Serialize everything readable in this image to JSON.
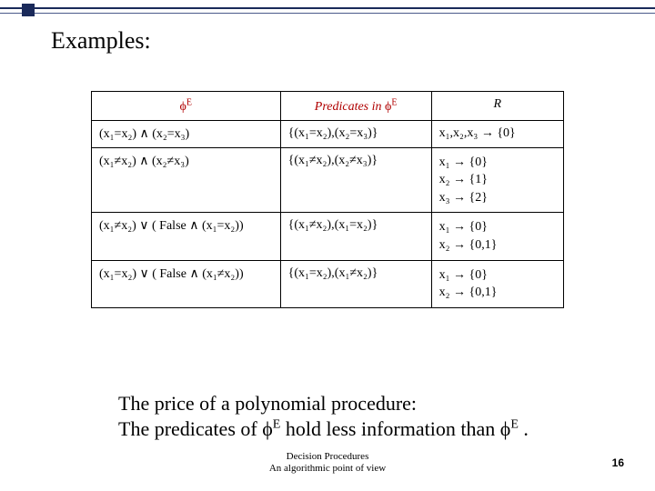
{
  "heading": "Examples:",
  "table": {
    "headers": {
      "col1_html": "ϕ<sup class='sup'>E</sup>",
      "col2_html": "Predicates in ϕ<sup class='sup'>E</sup>",
      "col3_html": "R"
    },
    "rows": [
      {
        "c1": "(x₁=x₂) ∧ (x₂=x₃)",
        "c2": "{(x₁=x₂),(x₂=x₃)}",
        "c3": "x₁,x₂,x₃ → {0}"
      },
      {
        "c1": "(x₁≠x₂) ∧ (x₂≠x₃)",
        "c2": "{(x₁≠x₂),(x₂≠x₃)}",
        "c3_lines": [
          "x₁ → {0}",
          "x₂ → {1}",
          "x₃ → {2}"
        ]
      },
      {
        "c1": "(x₁≠x₂) ∨ ( False ∧ (x₁=x₂))",
        "c2": "{(x₁≠x₂),(x₁=x₂)}",
        "c3_lines": [
          "x₁ → {0}",
          "x₂ → {0,1}"
        ]
      },
      {
        "c1": "(x₁=x₂) ∨ ( False ∧ (x₁≠x₂))",
        "c2": "{(x₁=x₂),(x₁≠x₂)}",
        "c3_lines": [
          "x₁ → {0}",
          "x₂ → {0,1}"
        ]
      }
    ]
  },
  "price": {
    "line1": "The price of a polynomial procedure:",
    "line2_prefix": "The predicates of ",
    "phiE": "ϕ",
    "supE": "E",
    "line2_mid": " hold less information than ",
    "line2_suffix": " ."
  },
  "footer": {
    "line1": "Decision Procedures",
    "line2": "An algorithmic point of view"
  },
  "page_number": "16",
  "colors": {
    "header_red": "#b00000",
    "deco_navy": "#1a2a5a",
    "border": "#000000",
    "text": "#000000",
    "background": "#ffffff"
  },
  "fonts": {
    "body_family": "Times New Roman",
    "heading_size_pt": 20,
    "table_size_pt": 11,
    "price_size_pt": 17,
    "footer_size_pt": 8
  }
}
